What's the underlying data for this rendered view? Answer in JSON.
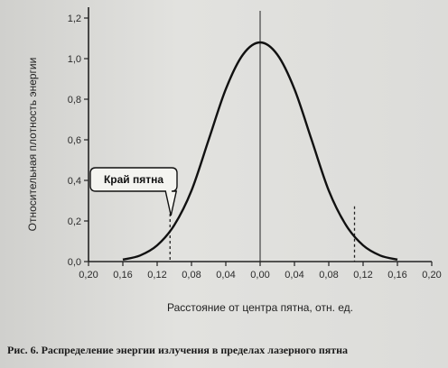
{
  "caption": "Рис. 6. Распределение энергии излучения в пределах лазерного пятна",
  "chart_data": {
    "type": "line",
    "title": "",
    "xlabel": "Расстояние от центра пятна, отн. ед.",
    "ylabel": "Относительная плотность энергии",
    "xlim": [
      -0.2,
      0.2
    ],
    "ylim": [
      0.0,
      1.2
    ],
    "x_ticks": [
      -0.2,
      -0.16,
      -0.12,
      -0.08,
      -0.04,
      0.0,
      0.04,
      0.08,
      0.12,
      0.16,
      0.2
    ],
    "x_tick_labels": [
      "0,20",
      "0,16",
      "0,12",
      "0,08",
      "0,04",
      "0,00",
      "0,04",
      "0,08",
      "0,12",
      "0,16",
      "0,20"
    ],
    "y_ticks": [
      0.0,
      0.2,
      0.4,
      0.6,
      0.8,
      1.0,
      1.2
    ],
    "y_tick_labels": [
      "0,0",
      "0,2",
      "0,4",
      "0,6",
      "0,8",
      "1,0",
      "1,2"
    ],
    "grid": false,
    "series": [
      {
        "x": [
          -0.16,
          -0.14,
          -0.12,
          -0.1,
          -0.08,
          -0.06,
          -0.04,
          -0.02,
          0.0,
          0.02,
          0.04,
          0.06,
          0.08,
          0.1,
          0.12,
          0.14,
          0.16
        ],
        "y": [
          0.01,
          0.03,
          0.08,
          0.18,
          0.35,
          0.6,
          0.85,
          1.02,
          1.08,
          1.02,
          0.85,
          0.6,
          0.35,
          0.18,
          0.08,
          0.03,
          0.01
        ]
      }
    ],
    "annotations": [
      {
        "text": "Край пятна",
        "x": -0.105,
        "y_top": 0.2,
        "marker": "dashed-vertical"
      },
      {
        "text": "",
        "x": 0.11,
        "y_top": 0.21,
        "marker": "dashed-vertical"
      }
    ],
    "colors": {
      "line": "#111111",
      "axes": "#222222",
      "box_fill": "#f4f4f0"
    }
  }
}
